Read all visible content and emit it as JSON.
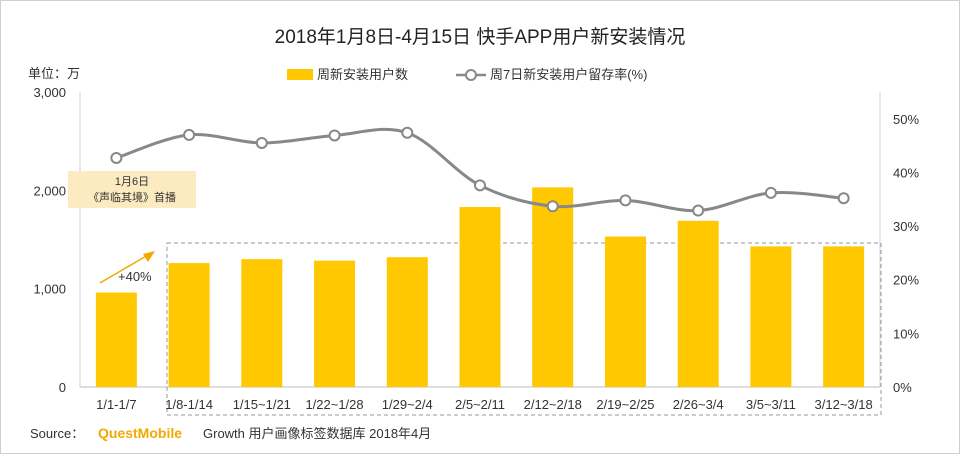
{
  "chart_data": {
    "type": "bar",
    "title": "2018年1月8日-4月15日 快手APP用户新安装情况",
    "unit_label": "单位：万",
    "categories": [
      "1/1-1/7",
      "1/8-1/14",
      "1/15~1/21",
      "1/22~1/28",
      "1/29~2/4",
      "2/5~2/11",
      "2/12~2/18",
      "2/19~2/25",
      "2/26~3/4",
      "3/5~3/11",
      "3/12~3/18"
    ],
    "series": [
      {
        "name": "周新安装用户数",
        "type": "bar",
        "axis": "left",
        "values": [
          960,
          1260,
          1300,
          1285,
          1320,
          1830,
          2030,
          1530,
          1690,
          1430,
          1430
        ]
      },
      {
        "name": "周7日新安装用户留存率(%)",
        "type": "line",
        "axis": "right",
        "values": [
          42.7,
          47.0,
          45.5,
          46.9,
          47.4,
          37.6,
          33.7,
          34.8,
          32.9,
          36.2,
          35.2
        ]
      }
    ],
    "left_axis": {
      "ylim": [
        0,
        3000
      ],
      "ticks": [
        "0",
        "1,000",
        "2,000",
        "3,000"
      ],
      "tick_values": [
        0,
        1000,
        2000,
        3000
      ]
    },
    "right_axis": {
      "ylim": [
        0,
        55
      ],
      "ticks": [
        "0%",
        "10%",
        "20%",
        "30%",
        "40%",
        "50%"
      ],
      "tick_values": [
        0,
        10,
        20,
        30,
        40,
        50
      ]
    },
    "annotations": {
      "callout_line1": "1月6日",
      "callout_line2": "《声临其境》首播",
      "growth_label": "+40%"
    },
    "source": {
      "prefix": "Source：",
      "brand": "QuestMobile",
      "suffix": "Growth 用户画像标签数据库 2018年4月"
    },
    "colors": {
      "bar": "#FFC800",
      "line": "#888888",
      "callout_bg": "#FCEBC0",
      "arrow": "#F2A900",
      "dash_box": "#999999"
    },
    "legend_position": "top-center",
    "grid": false
  }
}
